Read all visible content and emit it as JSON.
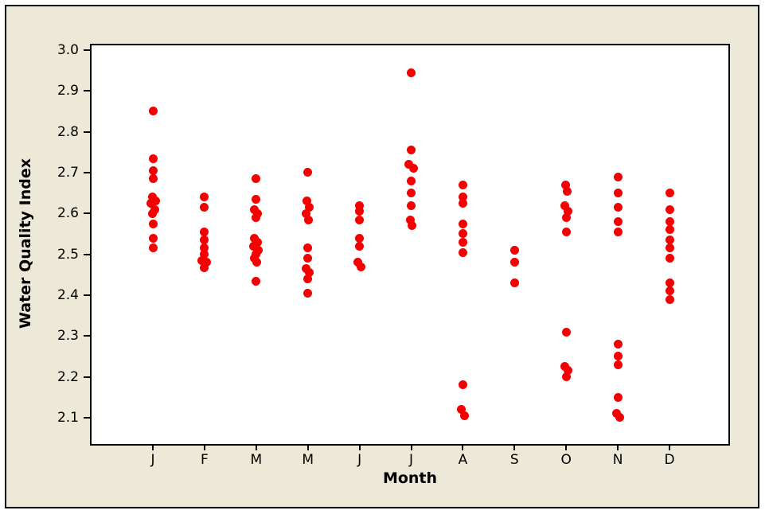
{
  "figure": {
    "background_color": "#ECE9D8",
    "plot_background": "#FFFFFF",
    "frame_color": "#000000"
  },
  "chart_data": {
    "type": "scatter",
    "title": "",
    "xlabel": "Month",
    "ylabel": "Water Quality Index",
    "ylim": [
      2.04,
      3.01
    ],
    "ytick_labels": [
      "3.0",
      "2.9",
      "2.8",
      "2.7",
      "2.6",
      "2.5",
      "2.4",
      "2.3",
      "2.2",
      "2.1"
    ],
    "yticks": [
      3.0,
      2.9,
      2.8,
      2.7,
      2.6,
      2.5,
      2.4,
      2.3,
      2.2,
      2.1
    ],
    "grid": false,
    "legend": "none",
    "point_color": "#F40000",
    "categories": [
      "J",
      "F",
      "M",
      "M",
      "J",
      "J",
      "A",
      "S",
      "O",
      "N",
      "D"
    ],
    "series": [
      {
        "month": "J",
        "points": [
          [
            2.85,
            0
          ],
          [
            2.735,
            0
          ],
          [
            2.705,
            0
          ],
          [
            2.685,
            0
          ],
          [
            2.64,
            -1
          ],
          [
            2.63,
            3
          ],
          [
            2.625,
            -3
          ],
          [
            2.61,
            2
          ],
          [
            2.6,
            -1
          ],
          [
            2.575,
            0
          ],
          [
            2.54,
            0
          ],
          [
            2.515,
            0
          ]
        ]
      },
      {
        "month": "F",
        "points": [
          [
            2.64,
            0
          ],
          [
            2.615,
            0
          ],
          [
            2.555,
            0
          ],
          [
            2.535,
            0
          ],
          [
            2.515,
            0
          ],
          [
            2.5,
            0
          ],
          [
            2.485,
            -3
          ],
          [
            2.48,
            3
          ],
          [
            2.468,
            0
          ]
        ]
      },
      {
        "month": "M",
        "points": [
          [
            2.685,
            0
          ],
          [
            2.635,
            0
          ],
          [
            2.61,
            -2
          ],
          [
            2.6,
            2
          ],
          [
            2.59,
            0
          ],
          [
            2.54,
            -2
          ],
          [
            2.53,
            2
          ],
          [
            2.52,
            -3
          ],
          [
            2.51,
            3
          ],
          [
            2.5,
            0
          ],
          [
            2.49,
            -2
          ],
          [
            2.48,
            1
          ],
          [
            2.435,
            0
          ]
        ]
      },
      {
        "month": "M2",
        "points": [
          [
            2.7,
            0
          ],
          [
            2.63,
            -1
          ],
          [
            2.615,
            2
          ],
          [
            2.6,
            -2
          ],
          [
            2.585,
            1
          ],
          [
            2.515,
            0
          ],
          [
            2.49,
            0
          ],
          [
            2.465,
            -2
          ],
          [
            2.455,
            2
          ],
          [
            2.44,
            0
          ],
          [
            2.405,
            0
          ]
        ]
      },
      {
        "month": "J2",
        "points": [
          [
            2.62,
            0
          ],
          [
            2.605,
            0
          ],
          [
            2.585,
            0
          ],
          [
            2.54,
            0
          ],
          [
            2.52,
            0
          ],
          [
            2.48,
            -2
          ],
          [
            2.47,
            2
          ]
        ]
      },
      {
        "month": "J3",
        "points": [
          [
            2.945,
            0
          ],
          [
            2.755,
            0
          ],
          [
            2.72,
            -3
          ],
          [
            2.71,
            3
          ],
          [
            2.68,
            0
          ],
          [
            2.65,
            0
          ],
          [
            2.62,
            0
          ],
          [
            2.585,
            -1
          ],
          [
            2.57,
            1
          ]
        ]
      },
      {
        "month": "A",
        "points": [
          [
            2.67,
            0
          ],
          [
            2.64,
            0
          ],
          [
            2.625,
            0
          ],
          [
            2.575,
            0
          ],
          [
            2.55,
            0
          ],
          [
            2.53,
            0
          ],
          [
            2.505,
            0
          ],
          [
            2.18,
            0
          ],
          [
            2.12,
            -2
          ],
          [
            2.105,
            2
          ]
        ]
      },
      {
        "month": "S",
        "points": [
          [
            2.51,
            0
          ],
          [
            2.48,
            0
          ],
          [
            2.43,
            0
          ]
        ]
      },
      {
        "month": "O",
        "points": [
          [
            2.67,
            -1
          ],
          [
            2.655,
            1
          ],
          [
            2.62,
            -2
          ],
          [
            2.605,
            2
          ],
          [
            2.59,
            0
          ],
          [
            2.555,
            0
          ],
          [
            2.31,
            0
          ],
          [
            2.225,
            -2
          ],
          [
            2.215,
            2
          ],
          [
            2.2,
            0
          ]
        ]
      },
      {
        "month": "N",
        "points": [
          [
            2.69,
            0
          ],
          [
            2.65,
            0
          ],
          [
            2.615,
            0
          ],
          [
            2.58,
            0
          ],
          [
            2.555,
            0
          ],
          [
            2.28,
            0
          ],
          [
            2.25,
            0
          ],
          [
            2.23,
            0
          ],
          [
            2.15,
            0
          ],
          [
            2.11,
            -2
          ],
          [
            2.1,
            2
          ]
        ]
      },
      {
        "month": "D",
        "points": [
          [
            2.65,
            0
          ],
          [
            2.61,
            0
          ],
          [
            2.58,
            0
          ],
          [
            2.56,
            0
          ],
          [
            2.535,
            0
          ],
          [
            2.515,
            0
          ],
          [
            2.49,
            0
          ],
          [
            2.43,
            0
          ],
          [
            2.41,
            0
          ],
          [
            2.39,
            0
          ]
        ]
      }
    ]
  }
}
